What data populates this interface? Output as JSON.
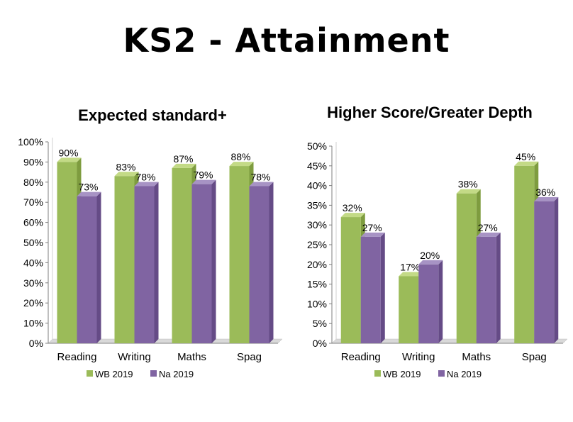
{
  "slide": {
    "title": "KS2 - Attainment"
  },
  "colors": {
    "wb": "#9BBB59",
    "wb_side": "#7E9C3F",
    "wb_top": "#C3DA86",
    "na": "#8064A2",
    "na_side": "#654B86",
    "na_top": "#A793C4",
    "axis": "#7f7f7f",
    "floor": "#d9d9d9"
  },
  "chart_data": [
    {
      "type": "bar",
      "title": "Expected standard+",
      "categories": [
        "Reading",
        "Writing",
        "Maths",
        "Spag"
      ],
      "series": [
        {
          "name": "WB 2019",
          "values": [
            90,
            83,
            87,
            88
          ]
        },
        {
          "name": "Na 2019",
          "values": [
            73,
            78,
            79,
            78
          ]
        }
      ],
      "data_labels": [
        [
          "90%",
          "83%",
          "87%",
          "88%"
        ],
        [
          "73%",
          "78%",
          "79%",
          "78%"
        ]
      ],
      "yticks": [
        "0%",
        "10%",
        "20%",
        "30%",
        "40%",
        "50%",
        "60%",
        "70%",
        "80%",
        "90%",
        "100%"
      ],
      "ylim": [
        0,
        100
      ],
      "ystep": 10,
      "legend": "bottom",
      "grid": false
    },
    {
      "type": "bar",
      "title": "Higher Score/Greater Depth",
      "categories": [
        "Reading",
        "Writing",
        "Maths",
        "Spag"
      ],
      "series": [
        {
          "name": "WB 2019",
          "values": [
            32,
            17,
            38,
            45
          ]
        },
        {
          "name": "Na 2019",
          "values": [
            27,
            20,
            27,
            36
          ]
        }
      ],
      "data_labels": [
        [
          "32%",
          "17%",
          "38%",
          "45%"
        ],
        [
          "27%",
          "20%",
          "27%",
          "36%"
        ]
      ],
      "yticks": [
        "0%",
        "5%",
        "10%",
        "15%",
        "20%",
        "25%",
        "30%",
        "35%",
        "40%",
        "45%",
        "50%"
      ],
      "ylim": [
        0,
        50
      ],
      "ystep": 5,
      "legend": "bottom",
      "grid": false
    }
  ]
}
